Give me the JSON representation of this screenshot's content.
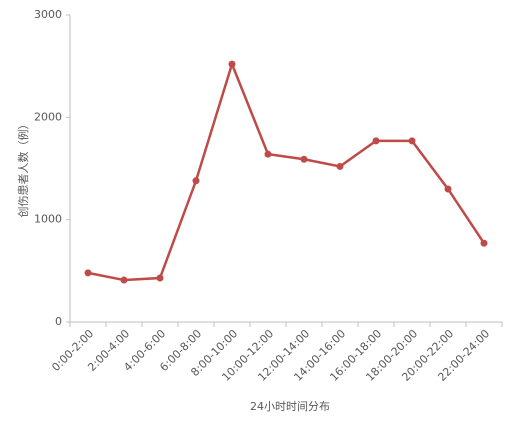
{
  "chart_data": {
    "type": "line",
    "x_label": "24小时时间分布",
    "y_label": "创伤患者人数（例）",
    "categories": [
      "0:00-2:00",
      "2:00-4:00",
      "4:00-6:00",
      "6:00-8:00",
      "8:00-10:00",
      "10:00-12:00",
      "12:00-14:00",
      "14:00-16:00",
      "16:00-18:00",
      "18:00-20:00",
      "20:00-22:00",
      "22:00-24:00"
    ],
    "series": [
      {
        "name": "创伤患者人数",
        "color": "#be4b48",
        "values": [
          480,
          410,
          430,
          1380,
          2520,
          1640,
          1590,
          1520,
          1770,
          1770,
          1300,
          770
        ]
      }
    ],
    "ylim": [
      0,
      3000
    ],
    "yticks": [
      0,
      1000,
      2000,
      3000
    ],
    "grid": false
  }
}
